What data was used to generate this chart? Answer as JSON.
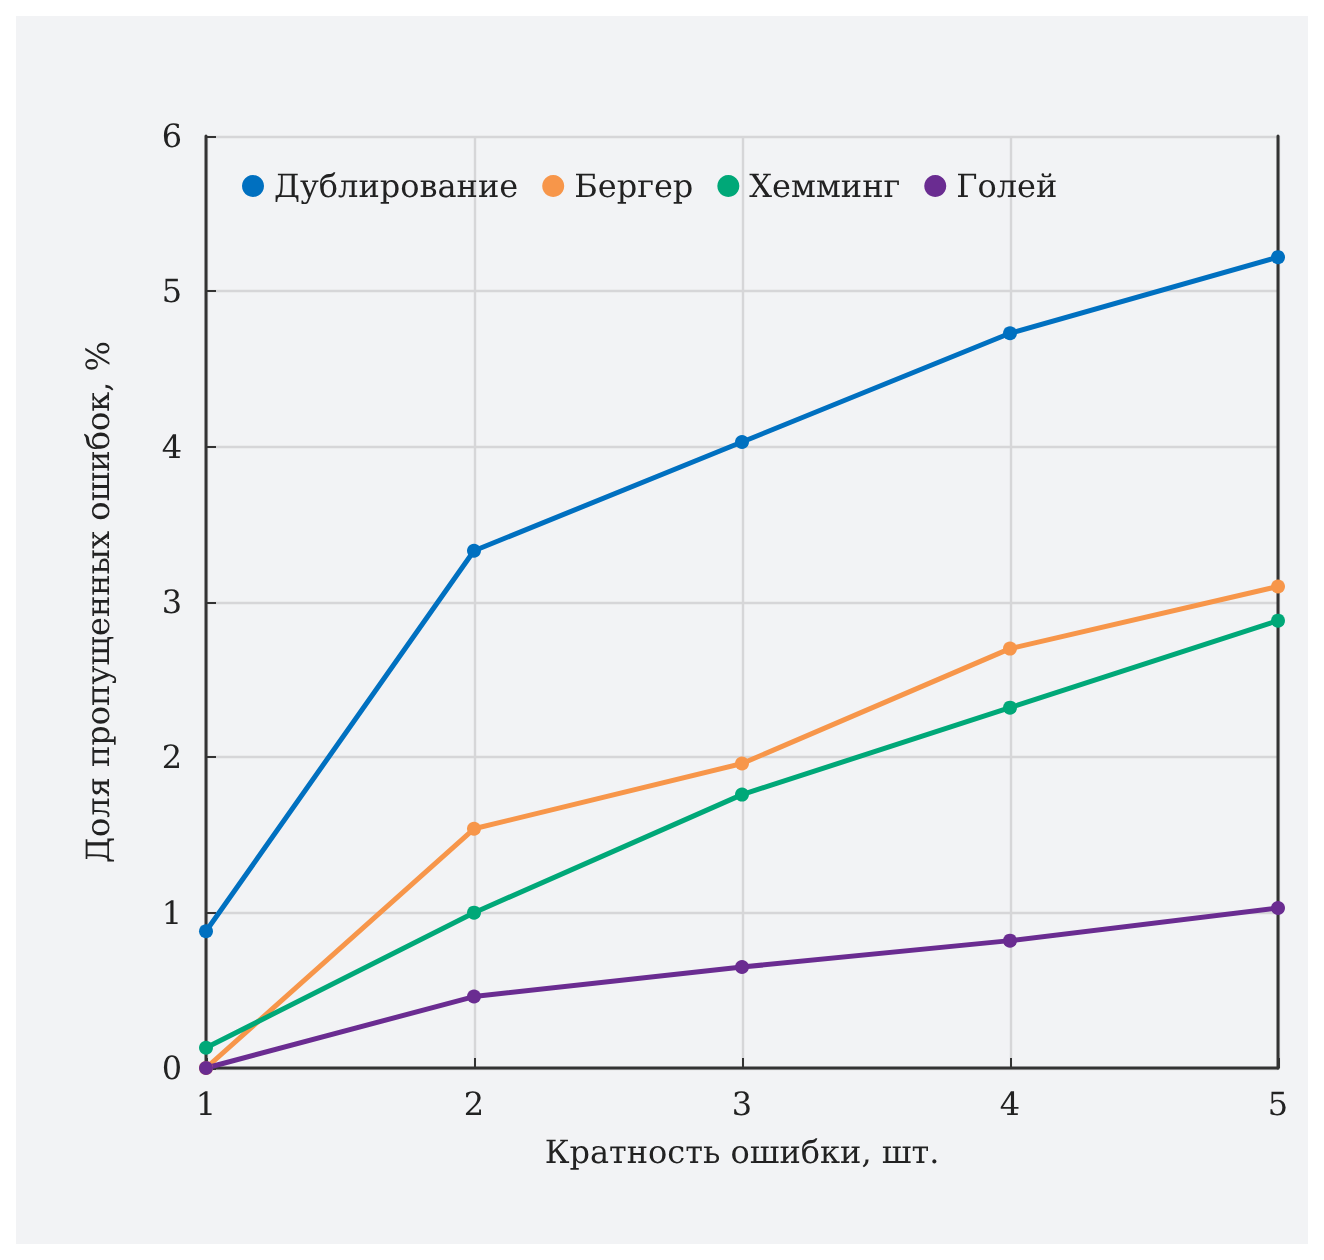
{
  "chart_data": {
    "type": "line",
    "xlabel": "Кратность ошибки, шт.",
    "ylabel": "Доля пропущенных ошибок, %",
    "x": [
      1,
      2,
      3,
      4,
      5
    ],
    "series": [
      {
        "name": "Дублирование",
        "color": "#0070c0",
        "values": [
          0.88,
          3.33,
          4.03,
          4.73,
          5.22
        ]
      },
      {
        "name": "Бергер",
        "color": "#f7964a",
        "values": [
          0,
          1.54,
          1.96,
          2.7,
          3.1
        ]
      },
      {
        "name": "Хемминг",
        "color": "#00a878",
        "values": [
          0.13,
          1.0,
          1.76,
          2.32,
          2.88
        ]
      },
      {
        "name": "Голей",
        "color": "#6a2c91",
        "values": [
          0,
          0.46,
          0.65,
          0.82,
          1.03
        ]
      }
    ],
    "xlim": [
      1,
      5
    ],
    "xticks": [
      1,
      2,
      3,
      4,
      5
    ],
    "ylim": [
      0,
      6
    ],
    "yticks": [
      0,
      1,
      2,
      3,
      4,
      5,
      6
    ],
    "grid": true,
    "legend": "top left",
    "marker": "circle",
    "line_style": "solid"
  }
}
